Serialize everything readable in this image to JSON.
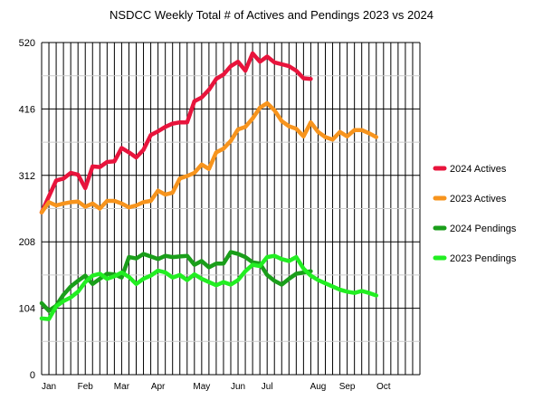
{
  "chart_data": {
    "type": "line",
    "title": "NSDCC Weekly Total # of Actives and Pendings 2023 vs 2024",
    "xlabel": "",
    "ylabel": "",
    "ylim": [
      0,
      520
    ],
    "yticks": [
      0,
      104,
      208,
      312,
      416,
      520
    ],
    "ytick_labels": [
      "0",
      "104",
      "208",
      "312",
      "416",
      "520"
    ],
    "week_count": 53,
    "months": [
      {
        "label": "Jan",
        "week": 0
      },
      {
        "label": "Feb",
        "week": 6
      },
      {
        "label": "Mar",
        "week": 11
      },
      {
        "label": "Apr",
        "week": 16
      },
      {
        "label": "May",
        "week": 22
      },
      {
        "label": "Jun",
        "week": 27
      },
      {
        "label": "Jul",
        "week": 31
      },
      {
        "label": "Aug",
        "week": 38
      },
      {
        "label": "Sep",
        "week": 42
      },
      {
        "label": "Oct",
        "week": 47
      }
    ],
    "grid": true,
    "legend_position": "right",
    "series": [
      {
        "name": "2024 Actives",
        "color": "#e8143c",
        "values": [
          254,
          279,
          304,
          307,
          316,
          313,
          292,
          326,
          325,
          333,
          334,
          355,
          348,
          340,
          352,
          375,
          381,
          388,
          393,
          395,
          395,
          428,
          434,
          446,
          463,
          470,
          483,
          490,
          476,
          503,
          490,
          498,
          489,
          486,
          483,
          476,
          464,
          463
        ]
      },
      {
        "name": "2023 Actives",
        "color": "#f7941d",
        "values": [
          254,
          270,
          265,
          268,
          270,
          271,
          263,
          268,
          260,
          272,
          272,
          268,
          262,
          265,
          270,
          272,
          288,
          282,
          285,
          307,
          311,
          316,
          329,
          322,
          348,
          354,
          366,
          384,
          388,
          401,
          418,
          425,
          414,
          397,
          389,
          385,
          373,
          395,
          380,
          372,
          368,
          380,
          373,
          383,
          383,
          378,
          372
        ]
      },
      {
        "name": "2024 Pendings",
        "color": "#1a9e1a",
        "values": [
          112,
          100,
          108,
          125,
          138,
          147,
          155,
          142,
          150,
          158,
          157,
          152,
          184,
          182,
          189,
          185,
          181,
          186,
          184,
          185,
          186,
          172,
          178,
          168,
          174,
          174,
          192,
          189,
          184,
          176,
          174,
          156,
          147,
          141,
          150,
          158,
          160,
          162
        ]
      },
      {
        "name": "2023 Pendings",
        "color": "#22ee22",
        "values": [
          88,
          87,
          107,
          115,
          121,
          130,
          145,
          155,
          158,
          150,
          154,
          160,
          153,
          142,
          150,
          155,
          163,
          160,
          152,
          156,
          148,
          157,
          150,
          145,
          140,
          145,
          141,
          148,
          162,
          172,
          170,
          184,
          186,
          181,
          178,
          184,
          166,
          155,
          148,
          143,
          138,
          133,
          130,
          128,
          131,
          128,
          124
        ]
      }
    ]
  }
}
